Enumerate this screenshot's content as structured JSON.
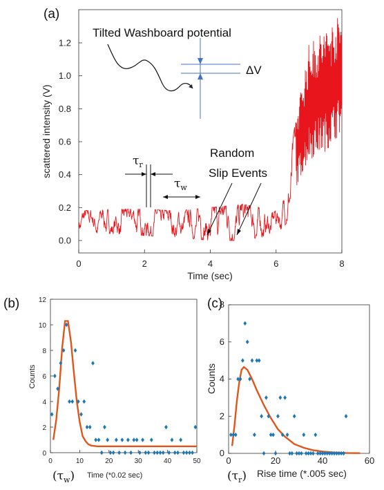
{
  "chart_data": [
    {
      "type": "line",
      "panel_label": "(a)",
      "xlabel": "Time (sec)",
      "ylabel": "scattered intensity (V)",
      "xlim": [
        0,
        8
      ],
      "ylim": [
        -0.05,
        1.38
      ],
      "xticks": [
        "0",
        "2",
        "4",
        "6",
        "8"
      ],
      "yticks": [
        "0.0",
        "0.2",
        "0.4",
        "0.6",
        "0.8",
        "1.0",
        "1.2"
      ],
      "color": "#e8161c",
      "trace_envelope": [
        {
          "t": 0.0,
          "low": 0.05,
          "high": 0.18
        },
        {
          "t": 1.0,
          "low": 0.04,
          "high": 0.19
        },
        {
          "t": 2.0,
          "low": 0.03,
          "high": 0.19
        },
        {
          "t": 3.0,
          "low": 0.02,
          "high": 0.18
        },
        {
          "t": 4.0,
          "low": 0.0,
          "high": 0.2
        },
        {
          "t": 5.0,
          "low": 0.0,
          "high": 0.22
        },
        {
          "t": 6.0,
          "low": 0.04,
          "high": 0.18
        },
        {
          "t": 6.3,
          "low": 0.1,
          "high": 0.28
        },
        {
          "t": 6.6,
          "low": 0.3,
          "high": 0.75
        },
        {
          "t": 7.0,
          "low": 0.45,
          "high": 1.2
        },
        {
          "t": 7.5,
          "low": 0.5,
          "high": 1.3
        },
        {
          "t": 8.0,
          "low": 0.62,
          "high": 1.38
        }
      ],
      "annotations": {
        "washboard": "Tilted Washboard potential",
        "delta_v": "ΔV",
        "tau_r": "τ",
        "tau_r_sub": "r",
        "tau_w": "τ",
        "tau_w_sub": "w",
        "random_slip_line1": "Random",
        "random_slip_line2": "Slip Events"
      }
    },
    {
      "type": "scatter",
      "panel_label": "(b)",
      "xlabel": "Time (*0.02 sec)",
      "xlabel_prefix": "(τ",
      "xlabel_sub": "w",
      "xlabel_suffix": ")",
      "ylabel": "Counts",
      "xlim": [
        0,
        50
      ],
      "ylim": [
        0,
        12
      ],
      "xticks": [
        "0",
        "10",
        "20",
        "30",
        "40",
        "50"
      ],
      "yticks": [
        "0",
        "2",
        "4",
        "6",
        "8",
        "10",
        "12"
      ],
      "points_color": "#1f77b4",
      "fit_color": "#e0561a",
      "points": [
        [
          0.5,
          3
        ],
        [
          1.5,
          6
        ],
        [
          2.5,
          5
        ],
        [
          3.5,
          7
        ],
        [
          4.5,
          8
        ],
        [
          5.5,
          10
        ],
        [
          6.5,
          4
        ],
        [
          7.5,
          4
        ],
        [
          8.5,
          8
        ],
        [
          9.5,
          4
        ],
        [
          10.5,
          3
        ],
        [
          11.5,
          4
        ],
        [
          12.5,
          2
        ],
        [
          13.5,
          2
        ],
        [
          14.5,
          7
        ],
        [
          15.5,
          1
        ],
        [
          16.5,
          1
        ],
        [
          17.5,
          0
        ],
        [
          18.5,
          2
        ],
        [
          19.5,
          1
        ],
        [
          20.5,
          0
        ],
        [
          21.5,
          0
        ],
        [
          22.5,
          1
        ],
        [
          23.5,
          0
        ],
        [
          24.5,
          1
        ],
        [
          25.5,
          0
        ],
        [
          26.5,
          1
        ],
        [
          27.5,
          0
        ],
        [
          28.5,
          1
        ],
        [
          29.5,
          1
        ],
        [
          30.5,
          0
        ],
        [
          31.5,
          1
        ],
        [
          32.5,
          0
        ],
        [
          33.5,
          0
        ],
        [
          34.5,
          1
        ],
        [
          35.5,
          0
        ],
        [
          36.5,
          0
        ],
        [
          37.5,
          0
        ],
        [
          38.5,
          0
        ],
        [
          39.5,
          2
        ],
        [
          40.5,
          0
        ],
        [
          41.5,
          1
        ],
        [
          42.5,
          0
        ],
        [
          43.5,
          0
        ],
        [
          44.5,
          1
        ],
        [
          45.5,
          0
        ],
        [
          46.5,
          0
        ],
        [
          47.5,
          0
        ],
        [
          48.5,
          0
        ],
        [
          49.5,
          2
        ]
      ],
      "fit": [
        [
          1,
          1
        ],
        [
          2,
          2.6
        ],
        [
          3,
          5
        ],
        [
          4,
          8.2
        ],
        [
          5,
          10.3
        ],
        [
          6,
          10.3
        ],
        [
          7,
          8.7
        ],
        [
          8,
          6.3
        ],
        [
          9,
          4
        ],
        [
          10,
          2.4
        ],
        [
          11,
          1.3
        ],
        [
          12,
          0.9
        ],
        [
          13,
          0.65
        ],
        [
          14,
          0.55
        ],
        [
          16,
          0.5
        ],
        [
          20,
          0.5
        ],
        [
          30,
          0.5
        ],
        [
          40,
          0.5
        ],
        [
          50,
          0.5
        ]
      ]
    },
    {
      "type": "scatter",
      "panel_label": "(c)",
      "xlabel": "Rise time (*.005 sec)",
      "xlabel_prefix": "(τ",
      "xlabel_sub": "r",
      "xlabel_suffix": ")",
      "ylabel": "Counts",
      "xlim": [
        0,
        60
      ],
      "ylim": [
        0,
        8
      ],
      "xticks": [
        "0",
        "20",
        "40",
        "60"
      ],
      "yticks": [
        "0",
        "2",
        "4",
        "6",
        "8"
      ],
      "points_color": "#1f77b4",
      "fit_color": "#e0561a",
      "points": [
        [
          1,
          1
        ],
        [
          2,
          1
        ],
        [
          3,
          1
        ],
        [
          4,
          4
        ],
        [
          5,
          4
        ],
        [
          6,
          5
        ],
        [
          7,
          7
        ],
        [
          8,
          6
        ],
        [
          9,
          4
        ],
        [
          10,
          5
        ],
        [
          11,
          1
        ],
        [
          12,
          5
        ],
        [
          13,
          5
        ],
        [
          14,
          2
        ],
        [
          15,
          0
        ],
        [
          16,
          3
        ],
        [
          17,
          2
        ],
        [
          18,
          1
        ],
        [
          19,
          1
        ],
        [
          20,
          0
        ],
        [
          21,
          2
        ],
        [
          22,
          3
        ],
        [
          23,
          1
        ],
        [
          24,
          3
        ],
        [
          25,
          1
        ],
        [
          26,
          0
        ],
        [
          27,
          0
        ],
        [
          28,
          2
        ],
        [
          29,
          0
        ],
        [
          30,
          0
        ],
        [
          31,
          0
        ],
        [
          32,
          1
        ],
        [
          33,
          0
        ],
        [
          34,
          0
        ],
        [
          35,
          0
        ],
        [
          36,
          0
        ],
        [
          37,
          1
        ],
        [
          38,
          0
        ],
        [
          39,
          0
        ],
        [
          40,
          0
        ],
        [
          41,
          0
        ],
        [
          42,
          0
        ],
        [
          43,
          0
        ],
        [
          44,
          0
        ],
        [
          45,
          0
        ],
        [
          46,
          0
        ],
        [
          47,
          0
        ],
        [
          48,
          0
        ],
        [
          49,
          0
        ],
        [
          50,
          2
        ]
      ],
      "fit": [
        [
          1.5,
          0.4
        ],
        [
          2.5,
          1.5
        ],
        [
          3.5,
          2.8
        ],
        [
          4.5,
          3.8
        ],
        [
          5.5,
          4.5
        ],
        [
          6.5,
          4.65
        ],
        [
          8,
          4.5
        ],
        [
          10,
          4
        ],
        [
          12,
          3.4
        ],
        [
          15,
          2.6
        ],
        [
          18,
          1.9
        ],
        [
          21,
          1.3
        ],
        [
          24,
          0.9
        ],
        [
          28,
          0.5
        ],
        [
          32,
          0.3
        ],
        [
          36,
          0.17
        ],
        [
          40,
          0.1
        ],
        [
          45,
          0.05
        ],
        [
          50,
          0.02
        ],
        [
          56,
          0.01
        ]
      ]
    }
  ]
}
